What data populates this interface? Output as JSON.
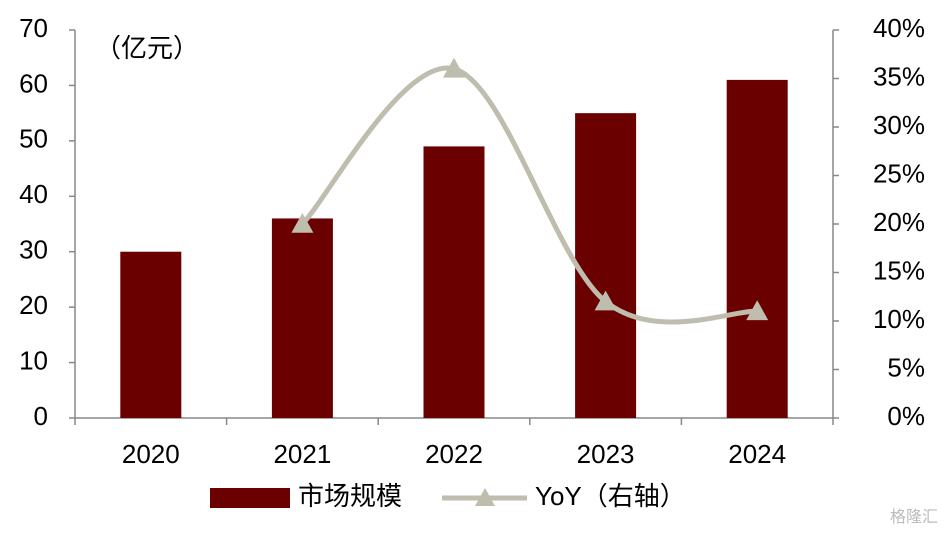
{
  "chart_data": {
    "type": "bar-line",
    "unit_label": "（亿元）",
    "categories": [
      "2020",
      "2021",
      "2022",
      "2023",
      "2024"
    ],
    "series": [
      {
        "name": "市场规模",
        "type": "bar",
        "color": "#6b0000",
        "values": [
          30,
          36,
          49,
          55,
          61
        ]
      },
      {
        "name": "YoY（右轴）",
        "type": "line",
        "axis": "y2",
        "color": "#bfbdae",
        "values": [
          null,
          20,
          36,
          12,
          11
        ]
      }
    ],
    "ylim": [
      0,
      70
    ],
    "yticks": [
      0,
      10,
      20,
      30,
      40,
      50,
      60,
      70
    ],
    "y2lim": [
      0,
      40
    ],
    "y2ticks": [
      {
        "value": 0,
        "label": "0%"
      },
      {
        "value": 5,
        "label": "5%"
      },
      {
        "value": 10,
        "label": "10%"
      },
      {
        "value": 15,
        "label": "15%"
      },
      {
        "value": 20,
        "label": "20%"
      },
      {
        "value": 25,
        "label": "25%"
      },
      {
        "value": 30,
        "label": "30%"
      },
      {
        "value": 35,
        "label": "35%"
      },
      {
        "value": 40,
        "label": "40%"
      }
    ],
    "legend": "bottom",
    "watermark": "格隆汇"
  }
}
